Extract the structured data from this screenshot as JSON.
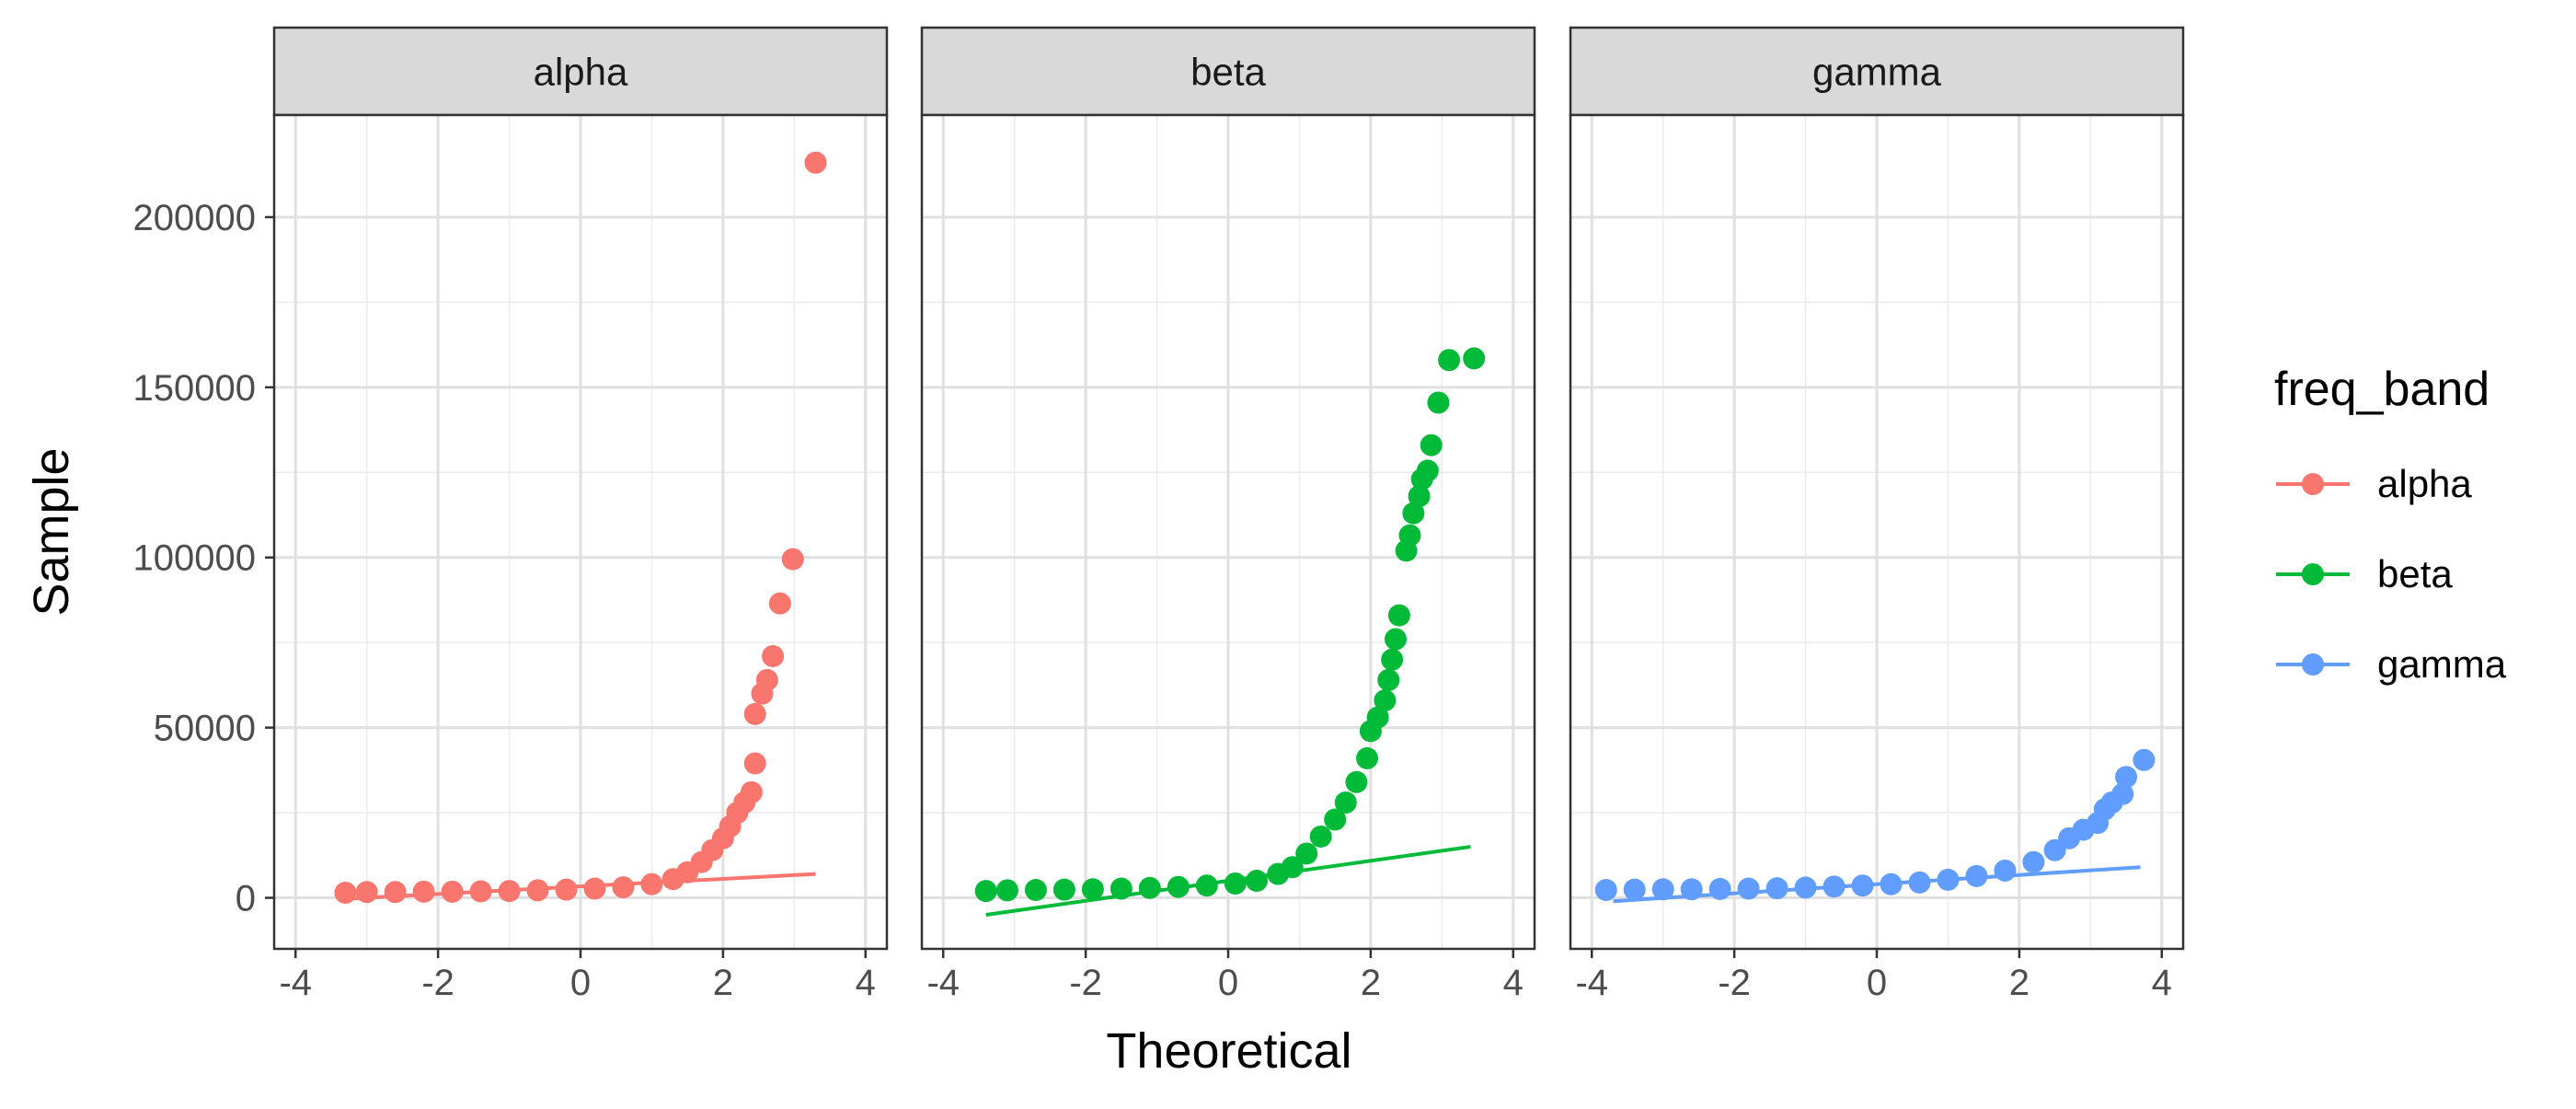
{
  "chart_data": {
    "type": "scatter",
    "subtype": "qq-plot-faceted",
    "xlabel": "Theoretical",
    "ylabel": "Sample",
    "xlim": [
      -4.3,
      4.3
    ],
    "ylim": [
      -15000,
      230000
    ],
    "x_ticks": [
      -4,
      -2,
      0,
      2,
      4
    ],
    "x_tick_labels": [
      "-4",
      "-2",
      "0",
      "2",
      "4"
    ],
    "y_ticks": [
      0,
      50000,
      100000,
      150000,
      200000
    ],
    "y_tick_labels": [
      "0",
      "50000",
      "100000",
      "150000",
      "200000"
    ],
    "grid": true,
    "legend": {
      "title": "freq_band",
      "placement": "right",
      "entries": [
        "alpha",
        "beta",
        "gamma"
      ]
    },
    "panels": [
      {
        "name": "alpha",
        "color": "#F8766D",
        "ref_line": {
          "x": [
            -3.3,
            3.3
          ],
          "y": [
            -300,
            7000
          ]
        },
        "points": [
          [
            -3.3,
            1500
          ],
          [
            -3.0,
            1700
          ],
          [
            -2.6,
            1700
          ],
          [
            -2.2,
            1800
          ],
          [
            -1.8,
            1800
          ],
          [
            -1.4,
            1900
          ],
          [
            -1.0,
            2000
          ],
          [
            -0.6,
            2200
          ],
          [
            -0.2,
            2400
          ],
          [
            0.2,
            2700
          ],
          [
            0.6,
            3100
          ],
          [
            1.0,
            4000
          ],
          [
            1.3,
            5500
          ],
          [
            1.5,
            7500
          ],
          [
            1.7,
            10500
          ],
          [
            1.85,
            14000
          ],
          [
            2.0,
            17500
          ],
          [
            2.1,
            21000
          ],
          [
            2.2,
            25000
          ],
          [
            2.3,
            28000
          ],
          [
            2.4,
            31000
          ],
          [
            2.45,
            39500
          ],
          [
            2.45,
            54000
          ],
          [
            2.55,
            60000
          ],
          [
            2.62,
            64000
          ],
          [
            2.7,
            71000
          ],
          [
            2.8,
            86500
          ],
          [
            2.98,
            99500
          ],
          [
            3.3,
            216000
          ]
        ]
      },
      {
        "name": "beta",
        "color": "#00BA38",
        "ref_line": {
          "x": [
            -3.4,
            3.4
          ],
          "y": [
            -5000,
            15000
          ]
        },
        "points": [
          [
            -3.4,
            2000
          ],
          [
            -3.1,
            2200
          ],
          [
            -2.7,
            2300
          ],
          [
            -2.3,
            2400
          ],
          [
            -1.9,
            2500
          ],
          [
            -1.5,
            2700
          ],
          [
            -1.1,
            2900
          ],
          [
            -0.7,
            3200
          ],
          [
            -0.3,
            3600
          ],
          [
            0.1,
            4200
          ],
          [
            0.4,
            5000
          ],
          [
            0.7,
            7000
          ],
          [
            0.9,
            9000
          ],
          [
            1.1,
            13000
          ],
          [
            1.3,
            18000
          ],
          [
            1.5,
            23000
          ],
          [
            1.65,
            28000
          ],
          [
            1.8,
            34000
          ],
          [
            1.95,
            41000
          ],
          [
            2.0,
            49000
          ],
          [
            2.1,
            53000
          ],
          [
            2.2,
            58000
          ],
          [
            2.25,
            64000
          ],
          [
            2.3,
            70000
          ],
          [
            2.35,
            76000
          ],
          [
            2.4,
            83000
          ],
          [
            2.5,
            102000
          ],
          [
            2.55,
            106500
          ],
          [
            2.6,
            113000
          ],
          [
            2.68,
            118000
          ],
          [
            2.72,
            123000
          ],
          [
            2.8,
            125500
          ],
          [
            2.85,
            133000
          ],
          [
            2.95,
            145500
          ],
          [
            3.1,
            158000
          ],
          [
            3.45,
            158500
          ]
        ]
      },
      {
        "name": "gamma",
        "color": "#619CFF",
        "ref_line": {
          "x": [
            -3.7,
            3.7
          ],
          "y": [
            -1000,
            9000
          ]
        },
        "points": [
          [
            -3.8,
            2300
          ],
          [
            -3.4,
            2400
          ],
          [
            -3.0,
            2500
          ],
          [
            -2.6,
            2500
          ],
          [
            -2.2,
            2600
          ],
          [
            -1.8,
            2700
          ],
          [
            -1.4,
            2800
          ],
          [
            -1.0,
            3000
          ],
          [
            -0.6,
            3300
          ],
          [
            -0.2,
            3600
          ],
          [
            0.2,
            4000
          ],
          [
            0.6,
            4500
          ],
          [
            1.0,
            5300
          ],
          [
            1.4,
            6400
          ],
          [
            1.8,
            8000
          ],
          [
            2.2,
            10500
          ],
          [
            2.5,
            14000
          ],
          [
            2.7,
            17500
          ],
          [
            2.9,
            20000
          ],
          [
            3.1,
            22000
          ],
          [
            3.2,
            26000
          ],
          [
            3.3,
            28000
          ],
          [
            3.45,
            30500
          ],
          [
            3.5,
            35500
          ],
          [
            3.75,
            40500
          ]
        ]
      }
    ]
  }
}
